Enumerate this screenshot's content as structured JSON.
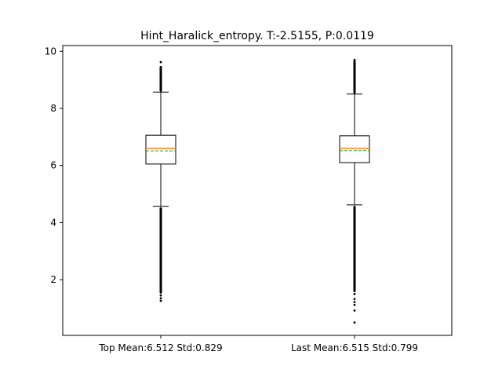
{
  "chart_data": {
    "type": "box",
    "title": "Hint_Haralick_entropy. T:-2.5155, P:0.0119",
    "xlabel": "",
    "ylabel": "",
    "ylim": [
      0.05,
      10.2
    ],
    "yticks": [
      2,
      4,
      6,
      8,
      10
    ],
    "categories": [
      "Top Mean:6.512 Std:0.829",
      "Last Mean:6.515 Std:0.799"
    ],
    "series": [
      {
        "whisker_low": 4.57,
        "q1": 6.05,
        "median": 6.6,
        "mean": 6.51,
        "q3": 7.06,
        "whisker_high": 8.57,
        "outliers_high": [
          8.62,
          8.7,
          8.8,
          8.9,
          9.0,
          9.1,
          9.2,
          9.3,
          9.4,
          9.45,
          9.62
        ],
        "outliers_low": [
          4.5,
          4.3,
          4.1,
          3.9,
          3.7,
          3.5,
          3.3,
          3.1,
          2.9,
          2.7,
          2.5,
          2.3,
          2.1,
          1.9,
          1.7,
          1.55,
          1.45,
          1.35,
          1.26
        ]
      },
      {
        "whisker_low": 4.62,
        "q1": 6.1,
        "median": 6.6,
        "mean": 6.52,
        "q3": 7.04,
        "whisker_high": 8.5,
        "outliers_high": [
          8.55,
          8.65,
          8.75,
          8.85,
          8.95,
          9.05,
          9.15,
          9.25,
          9.35,
          9.45,
          9.55,
          9.65,
          9.7
        ],
        "outliers_low": [
          4.55,
          4.35,
          4.15,
          3.95,
          3.75,
          3.55,
          3.35,
          3.15,
          2.95,
          2.75,
          2.55,
          2.35,
          2.15,
          1.95,
          1.75,
          1.6,
          1.5,
          1.32,
          1.22,
          1.12,
          0.92,
          0.5
        ]
      }
    ],
    "colors": {
      "median": "#ff7f0e",
      "mean": "#2ca02c",
      "box": "#000000",
      "outlier": "#000000"
    },
    "grid": false,
    "legend": "none"
  }
}
